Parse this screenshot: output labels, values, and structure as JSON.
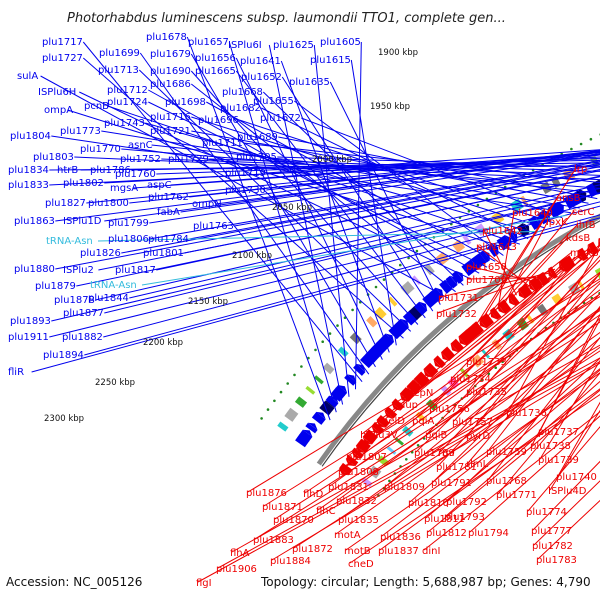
{
  "header": {
    "title": "Photorhabdus luminescens subsp. laumondii TTO1, complete gen..."
  },
  "footer": {
    "accession": "Accession: NC_005126",
    "summary": "Topology: circular; Length: 5,688,987 bp; Genes: 4,790"
  },
  "colors": {
    "forward_strand": "#0000ee",
    "reverse_strand": "#ee0000",
    "trna_label": "#33bbdd",
    "backbone": "#888888",
    "gc_dots": "#228822"
  },
  "ruler": [
    "1900 kbp",
    "1950 kbp",
    "2000 kbp",
    "2050 kbp",
    "2100 kbp",
    "2150 kbp",
    "2200 kbp",
    "2250 kbp",
    "2300 kbp"
  ],
  "forward_labels": [
    "plu1678",
    "plu1657",
    "ISPlu6I",
    "plu1625",
    "plu1605",
    "plu1717",
    "plu1699",
    "plu1679",
    "plu1656",
    "plu1641",
    "plu1615",
    "plu1727",
    "plu1713",
    "plu1690",
    "plu1665",
    "plu1652",
    "plu1635",
    "sulA",
    "plu1686",
    "plu1668",
    "ISPlu6H",
    "plu1712",
    "plu1724",
    "plu1698",
    "plu1655",
    "ompA",
    "pcnB",
    "plu1682",
    "plu1743",
    "plu1716",
    "plu1696",
    "plu1672",
    "plu1804",
    "plu1773",
    "plu1721",
    "plu1689",
    "asnC",
    "plu1770",
    "plu1711",
    "plu1803",
    "plu1752",
    "plu1729",
    "plu1705",
    "plu1834",
    "htrB",
    "plu1786",
    "plu1760",
    "plu1833",
    "plu1802",
    "mgsA",
    "aspC",
    "plu1719",
    "plu1827",
    "plu1800",
    "plu1762",
    "ompN",
    "plu1730",
    "fabA",
    "plu1863",
    "ISPlu1D",
    "plu1799",
    "plu1806",
    "plu1784",
    "plu1763",
    "plu1826",
    "plu1801",
    "plu1880",
    "ISPlu2",
    "plu1817",
    "plu1879",
    "plu1878",
    "plu1844",
    "plu1877",
    "plu1893",
    "plu1882",
    "plu1911",
    "plu1894",
    "fliR"
  ],
  "trna_labels": [
    "tRNA-Asn",
    "tRNA-Asn"
  ],
  "reverse_labels": [
    "lrp",
    "ansB",
    "serC",
    "ihfB",
    "plu1640",
    "lpxK",
    "kdsB",
    "plu1642",
    "mukB",
    "plu1643",
    "plu1650",
    "plu1709",
    "plu1731",
    "plu1732",
    "plu1733",
    "plu1734",
    "plu1735",
    "pepN",
    "uup",
    "plu1756",
    "plu1736",
    "helD",
    "pqiA",
    "plu1757",
    "ISPlu3V",
    "pqiB",
    "pyrD",
    "plu1737",
    "plu1738",
    "plu1789",
    "rmf",
    "plu1759",
    "plu1781",
    "rlmL",
    "plu1739",
    "plu1807",
    "plu1768",
    "plu1740",
    "plu1808",
    "plu1791",
    "ISPlu4D",
    "plu1831",
    "plu1809",
    "plu1771",
    "plu1876",
    "flhD",
    "plu1832",
    "plu1810",
    "plu1792",
    "plu1871",
    "flhC",
    "plu1774",
    "plu1870",
    "plu1835",
    "plu1811",
    "plu1793",
    "plu1883",
    "motA",
    "plu1836",
    "plu1812",
    "plu1794",
    "plu1777",
    "plu1872",
    "motB",
    "plu1837",
    "dinI",
    "plu1782",
    "flhA",
    "plu1884",
    "cheD",
    "plu1783",
    "plu1906",
    "flgI"
  ]
}
